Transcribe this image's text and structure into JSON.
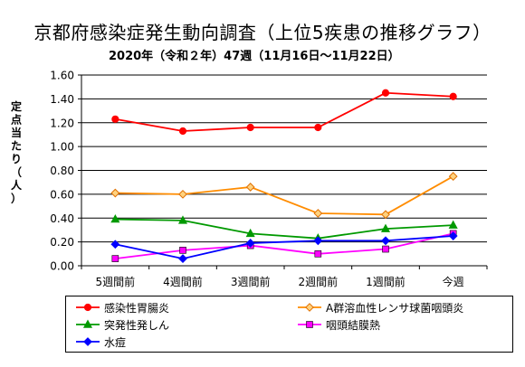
{
  "title": "京都府感染症発生動向調査（上位5疾患の推移グラフ）",
  "subtitle": "2020年（令和２年）47週（11月16日～11月22日）",
  "chart_data": {
    "type": "line",
    "title": "京都府感染症発生動向調査（上位5疾患の推移グラフ）",
    "subtitle": "2020年（令和２年）47週（11月16日～11月22日）",
    "xlabel": "",
    "ylabel": "定点当たり（人）",
    "ylim": [
      0,
      1.6
    ],
    "yticks": [
      "0.00",
      "0.20",
      "0.40",
      "0.60",
      "0.80",
      "1.00",
      "1.20",
      "1.40",
      "1.60"
    ],
    "categories": [
      "5週間前",
      "4週間前",
      "3週間前",
      "2週間前",
      "1週間前",
      "今週"
    ],
    "grid": "horizontal",
    "legend_position": "bottom",
    "series": [
      {
        "name": "感染性胃腸炎",
        "color": "#ff0000",
        "marker": "circle",
        "values": [
          1.23,
          1.13,
          1.16,
          1.16,
          1.45,
          1.42
        ]
      },
      {
        "name": "A群溶血性レンサ球菌咽頭炎",
        "color": "#ff8c00",
        "marker": "diamond",
        "values": [
          0.61,
          0.6,
          0.66,
          0.44,
          0.43,
          0.75
        ]
      },
      {
        "name": "突発性発しん",
        "color": "#009900",
        "marker": "triangle",
        "values": [
          0.39,
          0.38,
          0.27,
          0.23,
          0.31,
          0.34
        ]
      },
      {
        "name": "咽頭結膜熱",
        "color": "#ff00ff",
        "marker": "square",
        "values": [
          0.06,
          0.13,
          0.17,
          0.1,
          0.14,
          0.27
        ]
      },
      {
        "name": "水痘",
        "color": "#0000ff",
        "marker": "diamond",
        "values": [
          0.18,
          0.06,
          0.19,
          0.21,
          0.21,
          0.25
        ]
      }
    ]
  }
}
